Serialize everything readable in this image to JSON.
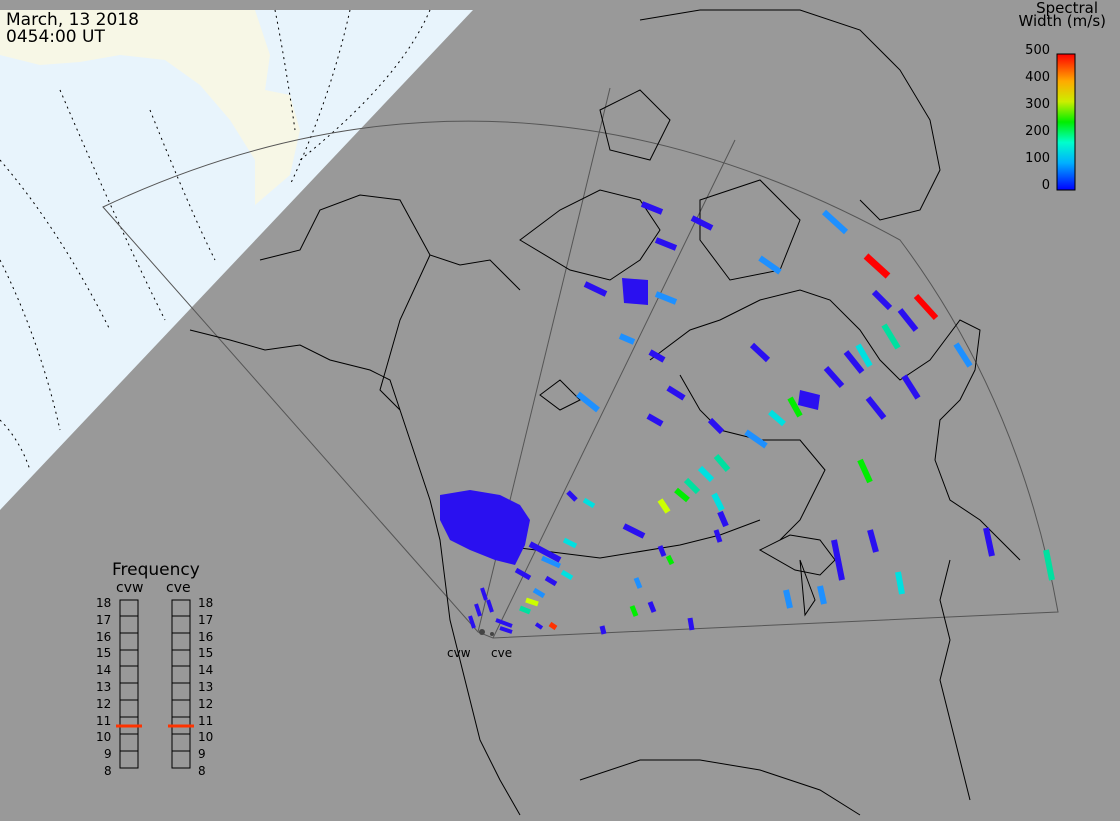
{
  "header": {
    "date": "March, 13 2018",
    "time": "0454:00 UT"
  },
  "legend": {
    "title_line1": "Spectral",
    "title_line2": "Width (m/s)",
    "scale_labels": [
      "500",
      "400",
      "300",
      "200",
      "100",
      "0"
    ],
    "colors": {
      "high": "#ff0000",
      "mid_high": "#ffcc00",
      "mid": "#00ee00",
      "mid_low": "#00ffff",
      "low": "#0000ff"
    }
  },
  "frequency_panel": {
    "title": "Frequency",
    "radars": [
      "cvw",
      "cve"
    ],
    "ticks": [
      "18",
      "17",
      "16",
      "15",
      "14",
      "13",
      "12",
      "11",
      "10",
      "9",
      "8"
    ],
    "current_mhz": 10.5,
    "marker_color": "#ff3300"
  },
  "radar_sites": {
    "west": "cvw",
    "east": "cve"
  },
  "colors": {
    "background": "#999999",
    "daylight_ocean": "#e8f4fc",
    "daylight_land": "#f7f7e6",
    "scatter_primary": "#2a10f0"
  }
}
